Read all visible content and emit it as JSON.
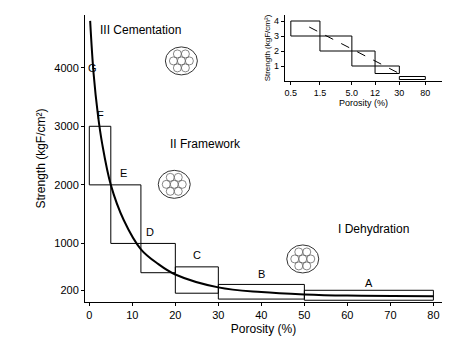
{
  "chart_data": [
    {
      "type": "step",
      "xlabel": "Porosity (%)",
      "ylabel": "Strength (kgF/cm²)",
      "bins": [
        0,
        5,
        12,
        20,
        30,
        50,
        80
      ],
      "upper": [
        3000,
        2000,
        1000,
        600,
        300,
        200
      ],
      "lower": [
        2000,
        1000,
        500,
        150,
        50,
        30
      ],
      "curve": {
        "x": [
          0.2,
          1,
          2,
          3,
          5,
          8,
          12,
          16,
          20,
          30,
          40,
          50,
          60,
          80
        ],
        "y": [
          4800,
          3900,
          3200,
          2700,
          2000,
          1400,
          900,
          650,
          470,
          250,
          170,
          130,
          110,
          100
        ]
      },
      "color": "#000000",
      "xlim": [
        -1,
        82
      ],
      "xticks": [
        0,
        10,
        20,
        30,
        40,
        50,
        60,
        70,
        80
      ],
      "ylim": [
        0,
        4900
      ],
      "yticks": [
        200,
        1000,
        2000,
        3000,
        4000
      ],
      "annotations": [
        {
          "text": "G",
          "x": 0.8,
          "y": 4000
        },
        {
          "text": "F",
          "x": 2.5,
          "y": 3200
        },
        {
          "text": "E",
          "x": 8,
          "y": 2200
        },
        {
          "text": "D",
          "x": 14,
          "y": 1200
        },
        {
          "text": "C",
          "x": 25,
          "y": 800
        },
        {
          "text": "B",
          "x": 40,
          "y": 480
        },
        {
          "text": "A",
          "x": 65,
          "y": 330
        },
        {
          "text": "III Cementation",
          "x": 12,
          "y": 4650
        },
        {
          "text": "II Framework",
          "x": 27,
          "y": 2700
        },
        {
          "text": "I Dehydration",
          "x": 66,
          "y": 1250
        }
      ]
    },
    {
      "type": "step",
      "log": "x",
      "xlabel": "Porosity (%)",
      "ylabel": "Strength (kgF/cm²)",
      "bins": [
        0.5,
        1.5,
        5,
        12,
        30,
        80
      ],
      "upper": [
        4,
        3,
        2,
        1,
        0.3
      ],
      "lower": [
        3,
        2,
        1,
        0.5,
        0.1
      ],
      "trend": {
        "x": [
          1,
          30
        ],
        "y": [
          3.6,
          0.5
        ],
        "line_style": "dash"
      },
      "color": "#000000",
      "xlim": [
        0.4,
        150
      ],
      "xticks": [
        0.5,
        1.5,
        {
          "value": 5,
          "label": "5.0"
        },
        12,
        30,
        80
      ],
      "ylim": [
        0,
        4.4
      ],
      "yticks": [
        1,
        2,
        3,
        4
      ]
    }
  ]
}
